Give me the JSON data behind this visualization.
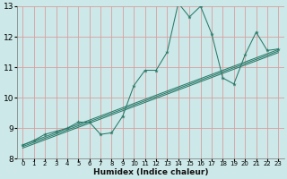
{
  "xlabel": "Humidex (Indice chaleur)",
  "bg_color": "#cce8e8",
  "grid_color": "#d8a0a0",
  "line_color": "#2a7a6a",
  "xlim": [
    -0.5,
    23.5
  ],
  "ylim": [
    8,
    13
  ],
  "xticks": [
    0,
    1,
    2,
    3,
    4,
    5,
    6,
    7,
    8,
    9,
    10,
    11,
    12,
    13,
    14,
    15,
    16,
    17,
    18,
    19,
    20,
    21,
    22,
    23
  ],
  "yticks": [
    8,
    9,
    10,
    11,
    12,
    13
  ],
  "series_main": {
    "x": [
      0,
      1,
      2,
      3,
      4,
      5,
      6,
      7,
      8,
      9,
      10,
      11,
      12,
      13,
      14,
      15,
      16,
      17,
      18,
      19,
      20,
      21,
      22,
      23
    ],
    "y": [
      8.45,
      8.6,
      8.8,
      8.9,
      9.0,
      9.2,
      9.2,
      8.8,
      8.85,
      9.4,
      10.4,
      10.9,
      10.9,
      11.5,
      13.1,
      12.65,
      13.0,
      12.1,
      10.65,
      10.45,
      11.4,
      12.15,
      11.55,
      11.6
    ]
  },
  "series_linear": [
    {
      "x": [
        0,
        23
      ],
      "y": [
        8.45,
        11.58
      ]
    },
    {
      "x": [
        0,
        23
      ],
      "y": [
        8.4,
        11.53
      ]
    },
    {
      "x": [
        0,
        23
      ],
      "y": [
        8.35,
        11.48
      ]
    }
  ]
}
